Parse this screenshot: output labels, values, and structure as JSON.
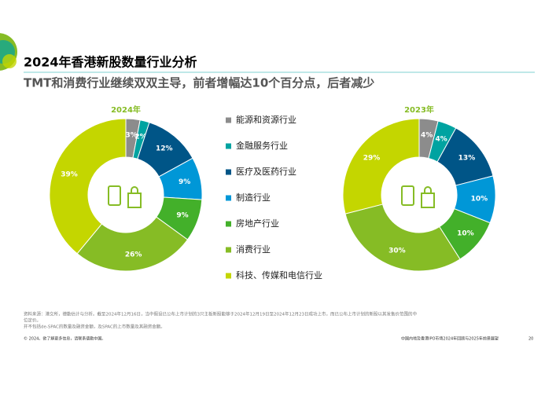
{
  "header": {
    "title": "2024年香港新股数量行业分析",
    "subtitle": "TMT和消费行业继续双双主导，前者增幅达10个百分点，后者减少"
  },
  "chart_data": [
    {
      "type": "pie",
      "title": "2024年",
      "categories": [
        "能源和资源行业",
        "金融服务行业",
        "医疗及医药行业",
        "制造行业",
        "房地产行业",
        "消费行业",
        "科技、传媒和电信行业"
      ],
      "values": [
        3,
        2,
        12,
        9,
        9,
        26,
        39
      ],
      "value_labels": [
        "3%",
        "2%",
        "12%",
        "9%",
        "9%",
        "26%",
        "39%"
      ],
      "colors": [
        "#8c8c8c",
        "#00a3a1",
        "#005587",
        "#0097d7",
        "#43b02a",
        "#86bc25",
        "#c4d600"
      ]
    },
    {
      "type": "pie",
      "title": "2023年",
      "categories": [
        "能源和资源行业",
        "金融服务行业",
        "医疗及医药行业",
        "制造行业",
        "房地产行业",
        "消费行业",
        "科技、传媒和电信行业"
      ],
      "values": [
        4,
        4,
        13,
        10,
        10,
        30,
        29
      ],
      "value_labels": [
        "4%",
        "4%",
        "13%",
        "10%",
        "10%",
        "30%",
        "29%"
      ],
      "colors": [
        "#8c8c8c",
        "#00a3a1",
        "#005587",
        "#0097d7",
        "#43b02a",
        "#86bc25",
        "#c4d600"
      ]
    }
  ],
  "footnotes": [
    "资料来源：港交所，德勤估计与分析。截至2024年12月16日，当中假设已公布上市计划的3只主板新股能够于2024年12月19日至2024年12月23日成功上市，而已公布上市计划的新股以其发售价范围的中",
    "位定价。",
    "并不包括de-SPAC的数量及融资金额，及SPAC的上市数量及其融资金额。"
  ],
  "footer": {
    "left": "© 2024。欲了解更多信息，请联系德勤中国。",
    "right": "中国内地及香港IPO市场2024年回顾与2025年前景展望",
    "page": "20"
  }
}
